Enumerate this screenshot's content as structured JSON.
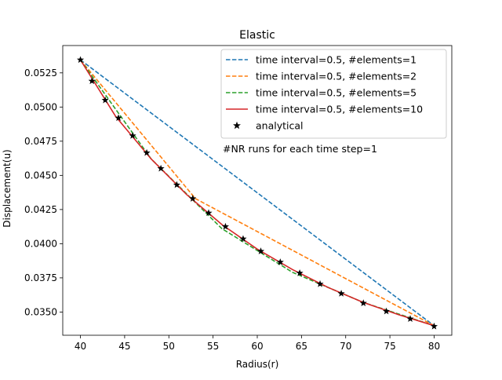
{
  "chart_data": {
    "type": "line",
    "title": "Elastic",
    "xlabel": "Radius(r)",
    "ylabel": "Displacement(u)",
    "xlim": [
      38.0,
      82.0
    ],
    "ylim": [
      0.0333,
      0.0545
    ],
    "xticks": [
      40,
      45,
      50,
      55,
      60,
      65,
      70,
      75,
      80
    ],
    "yticks": [
      0.035,
      0.0375,
      0.04,
      0.0425,
      0.045,
      0.0475,
      0.05,
      0.0525
    ],
    "xtick_labels": [
      "40",
      "45",
      "50",
      "55",
      "60",
      "65",
      "70",
      "75",
      "80"
    ],
    "ytick_labels": [
      "0.0350",
      "0.0375",
      "0.0400",
      "0.0425",
      "0.0450",
      "0.0475",
      "0.0500",
      "0.0525"
    ],
    "annotation": "#NR runs for each time step=1",
    "series": [
      {
        "name": "time interval=0.5, #elements=1",
        "style": "dashed",
        "color": "#1f77b4",
        "x": [
          40,
          80
        ],
        "y": [
          0.05345,
          0.034
        ]
      },
      {
        "name": "time interval=0.5, #elements=2",
        "style": "dashed",
        "color": "#ff7f0e",
        "x": [
          40,
          53,
          80
        ],
        "y": [
          0.05345,
          0.0433,
          0.034
        ]
      },
      {
        "name": "time interval=0.5, #elements=5",
        "style": "dashed",
        "color": "#2ca02c",
        "x": [
          40,
          48,
          56,
          64,
          72,
          80
        ],
        "y": [
          0.05345,
          0.0462,
          0.0411,
          0.0379,
          0.0357,
          0.034
        ]
      },
      {
        "name": "time interval=0.5, #elements=10",
        "style": "solid",
        "color": "#d62728",
        "x": [
          40,
          44,
          48,
          52,
          56,
          60,
          64,
          68,
          72,
          76,
          80
        ],
        "y": [
          0.05345,
          0.0493,
          0.0462,
          0.0436,
          0.0414,
          0.0396,
          0.0381,
          0.0368,
          0.0357,
          0.0348,
          0.034
        ]
      },
      {
        "name": "analytical",
        "style": "marker",
        "color": "#000000",
        "x": [
          40.0,
          41.3,
          42.8,
          44.3,
          45.9,
          47.5,
          49.1,
          50.9,
          52.7,
          54.5,
          56.4,
          58.4,
          60.4,
          62.6,
          64.8,
          67.1,
          69.5,
          72.0,
          74.6,
          77.3,
          80.0
        ],
        "y": [
          0.05345,
          0.0519,
          0.0505,
          0.0492,
          0.0479,
          0.04665,
          0.0455,
          0.0443,
          0.0433,
          0.04225,
          0.04125,
          0.04035,
          0.03945,
          0.03865,
          0.03785,
          0.03705,
          0.03635,
          0.03565,
          0.03505,
          0.0345,
          0.03395
        ]
      }
    ]
  }
}
